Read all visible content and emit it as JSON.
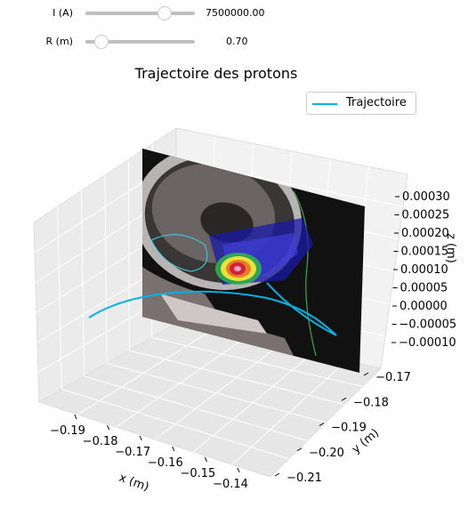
{
  "sliders": [
    {
      "label": "I (A)",
      "value": "7500000.00",
      "position": 0.72
    },
    {
      "label": "R (m)",
      "value": "0.70",
      "position": 0.15
    }
  ],
  "chart_data": {
    "type": "line",
    "title": "Trajectoire des protons",
    "legend": [
      "Trajectoire"
    ],
    "legend_position": "top-right",
    "xlabel": "x (m)",
    "ylabel": "y (m)",
    "zlabel": "z (m)",
    "x_ticks": [
      "−0.19",
      "−0.18",
      "−0.17",
      "−0.16",
      "−0.15",
      "−0.14"
    ],
    "y_ticks": [
      "−0.17",
      "−0.18",
      "−0.19",
      "−0.20",
      "−0.21"
    ],
    "z_ticks": [
      "0.00030",
      "0.00025",
      "0.00020",
      "0.00015",
      "0.00010",
      "0.00005",
      "0.00000",
      "−0.00005",
      "−0.00010"
    ],
    "grid": true,
    "series": [
      {
        "name": "Trajectoire",
        "color": "#00b4e6"
      }
    ]
  }
}
